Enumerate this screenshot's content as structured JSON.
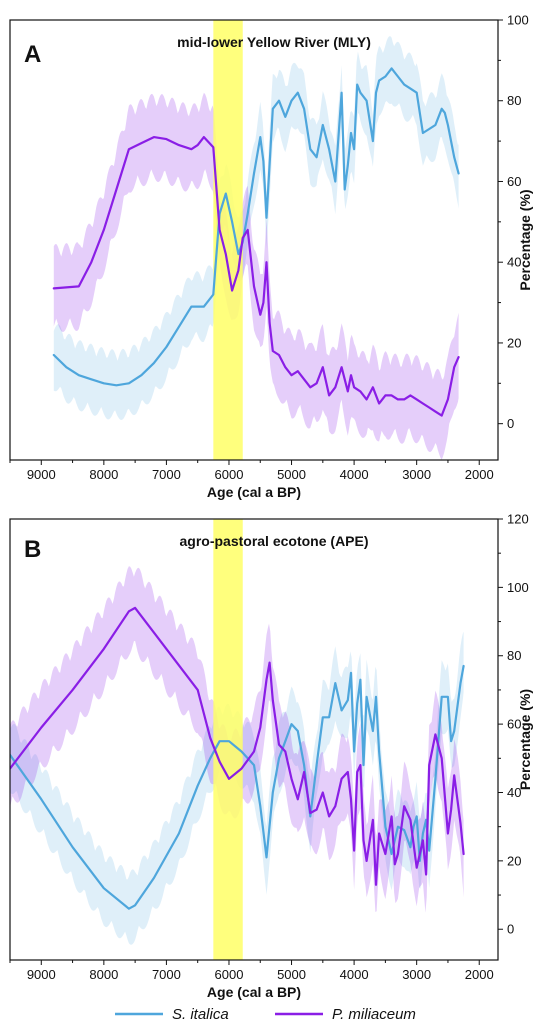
{
  "colors": {
    "italica": "#4ea6dc",
    "miliaceum": "#8a1ee6",
    "highlight": "#ffff66"
  },
  "legend": {
    "italica": "S. italica",
    "miliaceum": "P. miliaceum"
  },
  "chart_data": [
    {
      "type": "line",
      "panel": "A",
      "title": "mid-lower Yellow River (MLY)",
      "xlabel": "Age (cal a BP)",
      "ylabel": "Percentage (%)",
      "xlim": [
        9500,
        1700
      ],
      "ylim": [
        -9,
        100
      ],
      "xticks": [
        9000,
        8000,
        7000,
        6000,
        5000,
        4000,
        3000,
        2000
      ],
      "yticks": [
        0,
        20,
        40,
        60,
        80,
        100
      ],
      "highlight": [
        6250,
        5780
      ],
      "series": [
        {
          "key": "italica",
          "name": "S. italica",
          "x": [
            8800,
            8600,
            8400,
            8200,
            8000,
            7800,
            7600,
            7400,
            7200,
            7000,
            6800,
            6600,
            6400,
            6250,
            6150,
            6050,
            5950,
            5850,
            5780,
            5700,
            5600,
            5500,
            5450,
            5400,
            5300,
            5200,
            5100,
            5000,
            4900,
            4800,
            4700,
            4600,
            4500,
            4400,
            4300,
            4200,
            4150,
            4100,
            4050,
            4000,
            3950,
            3900,
            3800,
            3700,
            3650,
            3600,
            3500,
            3400,
            3300,
            3200,
            3100,
            3000,
            2900,
            2800,
            2700,
            2600,
            2550,
            2500,
            2400,
            2330
          ],
          "y": [
            17,
            14,
            12,
            11,
            10,
            9.5,
            10,
            12,
            15,
            19,
            24,
            29,
            29,
            32,
            52,
            57,
            50,
            42,
            45,
            52,
            62,
            71,
            65,
            51,
            78,
            80,
            76,
            80,
            82,
            78,
            68,
            66,
            74,
            68,
            60,
            82,
            58,
            64,
            72,
            68,
            84,
            82,
            80,
            70,
            82,
            85,
            86,
            88,
            86,
            84,
            83,
            82,
            72,
            73,
            74,
            78,
            77,
            74,
            66,
            62
          ]
        },
        {
          "key": "miliaceum",
          "name": "P. miliaceum",
          "x": [
            8800,
            8400,
            8200,
            8000,
            7800,
            7600,
            7400,
            7200,
            7000,
            6800,
            6600,
            6500,
            6400,
            6250,
            6150,
            6050,
            5950,
            5850,
            5780,
            5700,
            5600,
            5500,
            5450,
            5400,
            5350,
            5300,
            5200,
            5100,
            5000,
            4900,
            4800,
            4700,
            4600,
            4500,
            4400,
            4300,
            4200,
            4100,
            4050,
            4000,
            3900,
            3800,
            3700,
            3600,
            3500,
            3400,
            3300,
            3200,
            3100,
            3000,
            2900,
            2800,
            2700,
            2600,
            2500,
            2400,
            2330
          ],
          "y": [
            33.5,
            34,
            40,
            48,
            58,
            68,
            69.5,
            71,
            70.5,
            69,
            68,
            69,
            71,
            68.5,
            48,
            42,
            33,
            38,
            46,
            48,
            34,
            27,
            30,
            40,
            25,
            18,
            17,
            14,
            12,
            13,
            11,
            9,
            10,
            14,
            7,
            9,
            14,
            8,
            12,
            9,
            8,
            6,
            9,
            5,
            7,
            7,
            6,
            6,
            7,
            6,
            5,
            4,
            3,
            2,
            6,
            14,
            16.5
          ]
        }
      ]
    },
    {
      "type": "line",
      "panel": "B",
      "title": "agro-pastoral ecotone (APE)",
      "xlabel": "Age (cal a BP)",
      "ylabel": "Percentage (%)",
      "xlim": [
        9500,
        1700
      ],
      "ylim": [
        -9,
        120
      ],
      "xticks": [
        9000,
        8000,
        7000,
        6000,
        5000,
        4000,
        3000,
        2000
      ],
      "yticks": [
        0,
        20,
        40,
        60,
        80,
        100,
        120
      ],
      "highlight": [
        6250,
        5780
      ],
      "series": [
        {
          "key": "italica",
          "name": "S. italica",
          "x": [
            9500,
            9000,
            8500,
            8000,
            7600,
            7500,
            7200,
            6800,
            6500,
            6300,
            6150,
            6000,
            5800,
            5600,
            5500,
            5400,
            5300,
            5200,
            5100,
            5000,
            4900,
            4800,
            4700,
            4600,
            4500,
            4400,
            4300,
            4200,
            4100,
            4050,
            4000,
            3950,
            3900,
            3850,
            3800,
            3700,
            3650,
            3600,
            3550,
            3500,
            3400,
            3300,
            3200,
            3100,
            3050,
            3000,
            2950,
            2900,
            2850,
            2800,
            2700,
            2600,
            2500,
            2450,
            2400,
            2300,
            2250
          ],
          "y": [
            51,
            38,
            24,
            12,
            6,
            7,
            15,
            28,
            42,
            50,
            55,
            55,
            52,
            48,
            36,
            21,
            40,
            50,
            55,
            60,
            58,
            48,
            33,
            48,
            62,
            62,
            72,
            64,
            67,
            75,
            52,
            66,
            73,
            48,
            68,
            58,
            68,
            52,
            41,
            30,
            22,
            30,
            29,
            24,
            30,
            33,
            20,
            28,
            32,
            23,
            44,
            68,
            68,
            55,
            58,
            72,
            77
          ]
        },
        {
          "key": "miliaceum",
          "name": "P. miliaceum",
          "x": [
            9500,
            9000,
            8500,
            8000,
            7600,
            7500,
            7000,
            6500,
            6300,
            6150,
            6000,
            5800,
            5600,
            5500,
            5400,
            5350,
            5300,
            5200,
            5100,
            5000,
            4900,
            4800,
            4700,
            4600,
            4500,
            4400,
            4300,
            4200,
            4100,
            4050,
            4000,
            3950,
            3900,
            3850,
            3800,
            3700,
            3650,
            3600,
            3500,
            3400,
            3350,
            3300,
            3200,
            3100,
            3000,
            2950,
            2900,
            2850,
            2800,
            2700,
            2600,
            2500,
            2450,
            2400,
            2300,
            2250
          ],
          "y": [
            47,
            59,
            70,
            82,
            93,
            94,
            82,
            70,
            56,
            49,
            44,
            47,
            52,
            59,
            73,
            78,
            67,
            54,
            52,
            44,
            38,
            46,
            34,
            35,
            40,
            33,
            36,
            44,
            46,
            38,
            23,
            46,
            48,
            26,
            20,
            32,
            13,
            28,
            22,
            33,
            19,
            22,
            36,
            32,
            18,
            22,
            26,
            16,
            48,
            57,
            50,
            28,
            35,
            45,
            31,
            22
          ]
        }
      ]
    }
  ]
}
